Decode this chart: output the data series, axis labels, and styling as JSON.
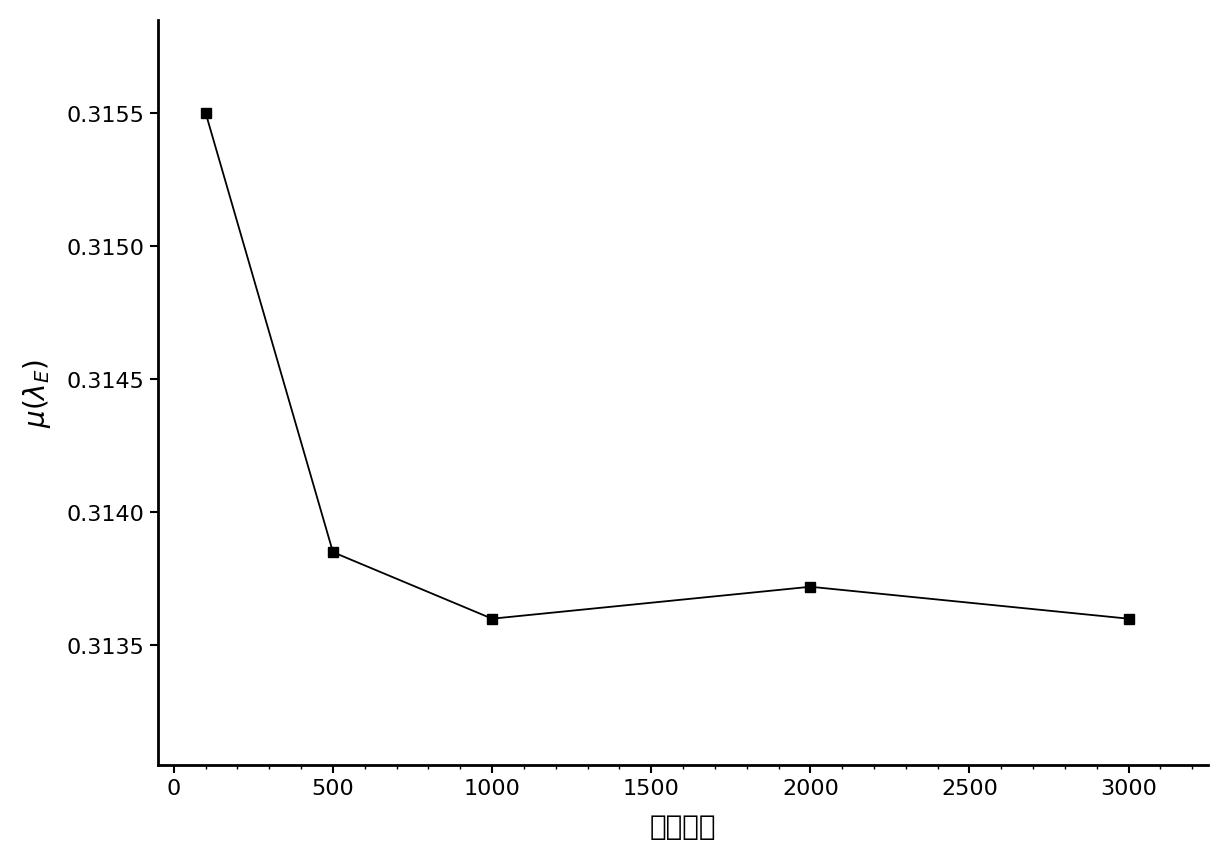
{
  "x": [
    100,
    500,
    1000,
    2000,
    3000
  ],
  "y": [
    0.3155,
    0.31385,
    0.3136,
    0.31372,
    0.3136
  ],
  "xlabel": "样本数量",
  "ylabel_unicode": "μ(λ_E)",
  "xlim": [
    -50,
    3250
  ],
  "ylim": [
    0.31305,
    0.31585
  ],
  "yticks": [
    0.3135,
    0.314,
    0.3145,
    0.315,
    0.3155
  ],
  "xticks": [
    0,
    500,
    1000,
    1500,
    2000,
    2500,
    3000
  ],
  "marker": "s",
  "markersize": 7,
  "linecolor": "#000000",
  "background_color": "#ffffff",
  "xlabel_fontsize": 20,
  "ylabel_fontsize": 20,
  "tick_fontsize": 16,
  "spine_linewidth": 2.0
}
